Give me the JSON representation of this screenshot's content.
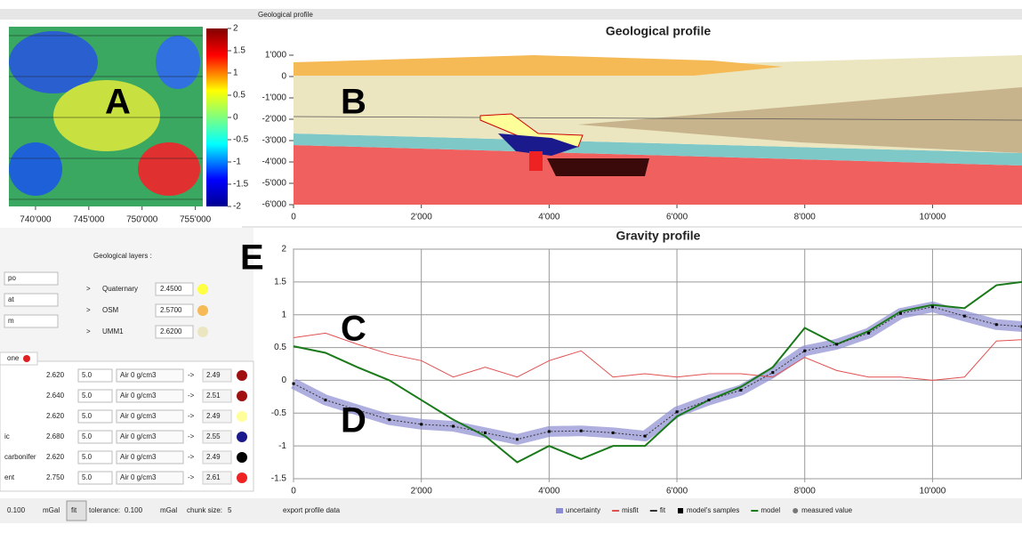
{
  "dock_title": "Geological profile",
  "map": {
    "label": "A",
    "colorbar_lim": [
      -2,
      2
    ],
    "colorbar_ticks": [
      2,
      1.5,
      1,
      0.5,
      0,
      -0.5,
      -1,
      -1.5,
      -2
    ],
    "xlim": [
      737500,
      755700
    ],
    "xticks": [
      {
        "value": 740000,
        "label": "740'000"
      },
      {
        "value": 745000,
        "label": "745'000"
      },
      {
        "value": 750000,
        "label": "750'000"
      },
      {
        "value": 755000,
        "label": "755'000"
      }
    ]
  },
  "geological_profile": {
    "title": "Geological profile",
    "label": "B",
    "xlim": [
      0,
      11400
    ],
    "ylim": [
      -6000,
      1500
    ],
    "xticks": [
      0,
      {
        "value": 2000,
        "label": "2'000"
      },
      {
        "value": 4000,
        "label": "4'000"
      },
      {
        "value": 6000,
        "label": "6'000"
      },
      {
        "value": 8000,
        "label": "8'000"
      },
      {
        "value": 10000,
        "label": "10'000"
      }
    ],
    "yticks": [
      {
        "value": 1000,
        "label": "1'000"
      },
      0,
      {
        "value": -1000,
        "label": "-1'000"
      },
      {
        "value": -2000,
        "label": "-2'000"
      },
      {
        "value": -3000,
        "label": "-3'000"
      },
      {
        "value": -4000,
        "label": "-4'000"
      },
      {
        "value": -5000,
        "label": "-5'000"
      },
      {
        "value": -6000,
        "label": "-6'000"
      }
    ]
  },
  "gravity_profile": {
    "title": "Gravity profile",
    "labels": [
      "C",
      "D"
    ],
    "xlim": [
      0,
      11400
    ],
    "ylim": [
      -1.5,
      2
    ],
    "xticks": [
      0,
      {
        "value": 2000,
        "label": "2'000"
      },
      {
        "value": 4000,
        "label": "4'000"
      },
      {
        "value": 6000,
        "label": "6'000"
      },
      {
        "value": 8000,
        "label": "8'000"
      },
      {
        "value": 10000,
        "label": "10'000"
      }
    ],
    "yticks": [
      2,
      1.5,
      1,
      0.5,
      0,
      -0.5,
      -1,
      -1.5
    ],
    "x": [
      0,
      500,
      1000,
      1500,
      2000,
      2500,
      3000,
      3500,
      4000,
      4500,
      5000,
      5500,
      6000,
      6500,
      7000,
      7500,
      8000,
      8500,
      9000,
      9500,
      10000,
      10500,
      11000,
      11400
    ],
    "series": [
      {
        "color": "#8c8cd2",
        "values": [
          -0.05,
          -0.3,
          -0.45,
          -0.6,
          -0.67,
          -0.7,
          -0.8,
          -0.9,
          -0.78,
          -0.77,
          -0.8,
          -0.85,
          -0.48,
          -0.3,
          -0.15,
          0.12,
          0.45,
          0.55,
          0.72,
          1.02,
          1.12,
          0.98,
          0.85,
          0.82
        ]
      },
      {
        "color": "#e05050",
        "values": [
          0.65,
          0.72,
          0.55,
          0.4,
          0.3,
          0.05,
          0.2,
          0.05,
          0.3,
          0.45,
          0.05,
          0.1,
          0.05,
          0.1,
          0.1,
          0.05,
          0.35,
          0.15,
          0.05,
          0.05,
          0,
          0.05,
          0.6,
          0.62
        ]
      },
      {
        "color": "#1a7a1a",
        "values": [
          0.52,
          0.42,
          0.2,
          0,
          -0.3,
          -0.6,
          -0.85,
          -1.25,
          -1.0,
          -1.2,
          -1.0,
          -1.0,
          -0.55,
          -0.3,
          -0.1,
          0.2,
          0.8,
          0.55,
          0.75,
          1.05,
          1.15,
          1.1,
          1.45,
          1.5
        ]
      }
    ],
    "legend": [
      {
        "name": "uncertainty",
        "color": "#8c8cd2"
      },
      {
        "name": "misfit",
        "color": "#e05050"
      },
      {
        "name": "fit",
        "color": "#333333"
      },
      {
        "name": "model's samples",
        "color": "#000000"
      },
      {
        "name": "model",
        "color": "#1a7a1a"
      },
      {
        "name": "measured value",
        "color": "#777777"
      }
    ]
  },
  "panel_label": "E",
  "layers_panel": {
    "title": "Geological layers :",
    "fields": [
      "po",
      "at",
      "m"
    ],
    "layers": [
      {
        "arrow": ">",
        "name": "Quaternary",
        "density": "2.4500",
        "color": "#ffff44"
      },
      {
        "arrow": ">",
        "name": "OSM",
        "density": "2.5700",
        "color": "#f5b955"
      },
      {
        "arrow": ">",
        "name": "UMM1",
        "density": "2.6200",
        "color": "#ebe5c0"
      }
    ]
  },
  "tab": "one",
  "table": {
    "rows": [
      {
        "density": "2.620",
        "thickness": "5.0",
        "medium": "Air 0 g/cm3",
        "arrow": "->",
        "value": "2.49",
        "color": "#a01010"
      },
      {
        "density": "2.640",
        "thickness": "5.0",
        "medium": "Air 0 g/cm3",
        "arrow": "->",
        "value": "2.51",
        "color": "#a01010"
      },
      {
        "density": "2.620",
        "thickness": "5.0",
        "medium": "Air 0 g/cm3",
        "arrow": "->",
        "value": "2.49",
        "color": "#ffff99"
      },
      {
        "name": "ic",
        "density": "2.680",
        "thickness": "5.0",
        "medium": "Air 0 g/cm3",
        "arrow": "->",
        "value": "2.55",
        "color": "#1a1a8c"
      },
      {
        "name": "carbonifer",
        "density": "2.620",
        "thickness": "5.0",
        "medium": "Air 0 g/cm3",
        "arrow": "->",
        "value": "2.49",
        "color": "#000000"
      },
      {
        "name": "ent",
        "density": "2.750",
        "thickness": "5.0",
        "medium": "Air 0 g/cm3",
        "arrow": "->",
        "value": "2.61",
        "color": "#ee2222"
      }
    ]
  },
  "toolbar": {
    "value": "0.100",
    "unit": "mGal",
    "fit": "fit",
    "tolerance_label": "tolerance:",
    "tolerance": "0.100",
    "tolerance_unit": "mGal",
    "chunk_label": "chunk size:",
    "chunk": "5",
    "export": "export profile data"
  }
}
